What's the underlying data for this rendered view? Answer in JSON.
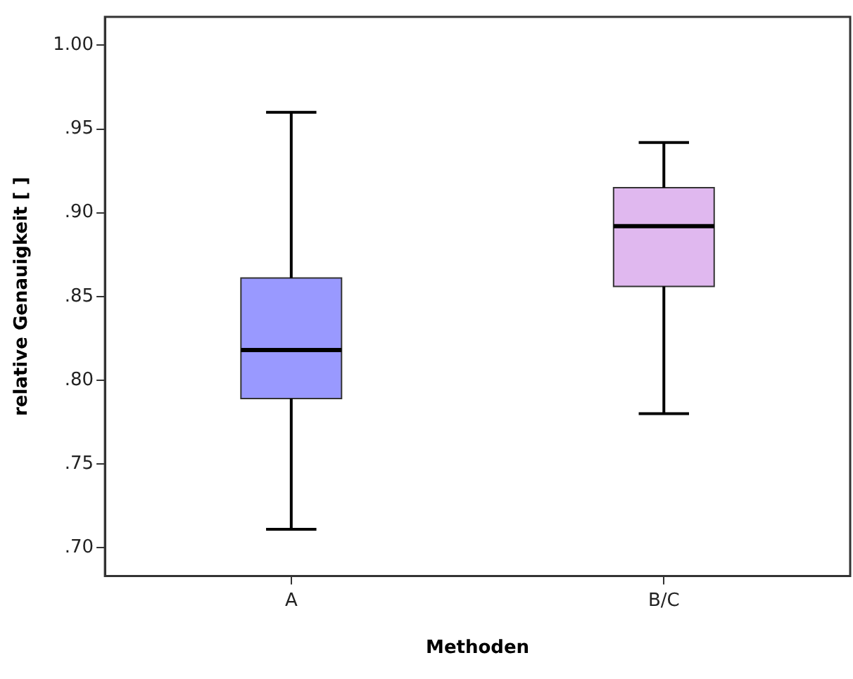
{
  "chart_data": {
    "type": "box",
    "xlabel": "Methoden",
    "ylabel": "relative Genauigkeit [ ]",
    "categories": [
      "A",
      "B/C"
    ],
    "colors": [
      "#9999ff",
      "#e0b8ef"
    ],
    "boxes": [
      {
        "low": 0.711,
        "q1": 0.789,
        "median": 0.818,
        "q3": 0.861,
        "high": 0.96
      },
      {
        "low": 0.78,
        "q1": 0.856,
        "median": 0.892,
        "q3": 0.915,
        "high": 0.942
      }
    ],
    "ylim": [
      0.683,
      1.017
    ],
    "yticks": [
      {
        "value": 0.7,
        "label": ".70"
      },
      {
        "value": 0.75,
        "label": ".75"
      },
      {
        "value": 0.8,
        "label": ".80"
      },
      {
        "value": 0.85,
        "label": ".85"
      },
      {
        "value": 0.9,
        "label": ".90"
      },
      {
        "value": 0.95,
        "label": ".95"
      },
      {
        "value": 1,
        "label": "1.00"
      }
    ],
    "grid": false,
    "legend": false
  }
}
